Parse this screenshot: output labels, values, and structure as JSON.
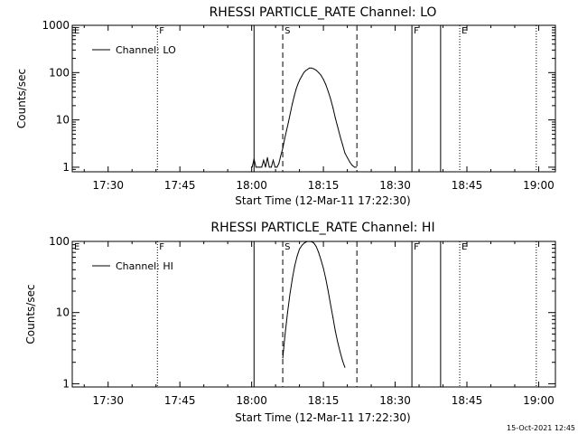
{
  "chart_data": [
    {
      "type": "line",
      "title": "RHESSI PARTICLE_RATE Channel: LO",
      "xlabel": "Start Time (12-Mar-11 17:22:30)",
      "ylabel": "Counts/sec",
      "legend": {
        "entries": [
          "Channel: LO"
        ],
        "placement": "top-left"
      },
      "x_unit": "minutes after 17:22:30",
      "xlim": [
        0,
        101
      ],
      "xticks": [
        {
          "value": 7.5,
          "label": "17:30"
        },
        {
          "value": 22.5,
          "label": "17:45"
        },
        {
          "value": 37.5,
          "label": "18:00"
        },
        {
          "value": 52.5,
          "label": "18:15"
        },
        {
          "value": 67.5,
          "label": "18:30"
        },
        {
          "value": 82.5,
          "label": "18:45"
        },
        {
          "value": 97.5,
          "label": "19:00"
        }
      ],
      "yscale": "log",
      "ylim": [
        0.8,
        1000
      ],
      "yticks": [
        {
          "value": 1,
          "label": "1"
        },
        {
          "value": 10,
          "label": "10"
        },
        {
          "value": 100,
          "label": "100"
        },
        {
          "value": 1000,
          "label": "1000"
        }
      ],
      "grid": false,
      "series": [
        {
          "name": "Channel: LO",
          "color": "#000000",
          "x": [
            37.6,
            38.0,
            38.4,
            38.8,
            39.2,
            39.6,
            40.0,
            40.4,
            40.8,
            41.2,
            41.6,
            42.0,
            42.4,
            42.8,
            43.2,
            43.6,
            44.0,
            44.4,
            44.8,
            45.2,
            45.6,
            46.0,
            46.4,
            46.8,
            47.2,
            47.6,
            48.0,
            48.4,
            48.8,
            49.2,
            49.6,
            50.0,
            50.5,
            51.0,
            51.5,
            52.0,
            52.5,
            53.0,
            53.5,
            54.0,
            54.5,
            55.0,
            55.5,
            56.0,
            56.5,
            57.0,
            57.5,
            58.0,
            58.5,
            59.0,
            59.4
          ],
          "y": [
            1,
            1.5,
            1,
            1,
            1,
            1,
            1.4,
            1,
            1.6,
            1,
            1,
            1.4,
            1,
            1,
            1.2,
            1.8,
            2.5,
            4,
            6,
            9,
            14,
            22,
            32,
            45,
            58,
            72,
            85,
            100,
            110,
            118,
            125,
            125,
            120,
            112,
            100,
            88,
            72,
            56,
            40,
            28,
            18,
            11,
            7,
            4.5,
            3,
            2,
            1.6,
            1.3,
            1.1,
            1,
            1
          ]
        }
      ],
      "vertical_lines": [
        {
          "x": 17.8,
          "style": "dotted",
          "flag": "F"
        },
        {
          "x": 38.0,
          "style": "solid",
          "flag": ""
        },
        {
          "x": 44.0,
          "style": "dashed",
          "flag": "S"
        },
        {
          "x": 59.5,
          "style": "dashed",
          "flag": ""
        },
        {
          "x": 71.0,
          "style": "solid",
          "flag": "F"
        },
        {
          "x": 77.0,
          "style": "solid",
          "flag": ""
        },
        {
          "x": 81.0,
          "style": "dotted",
          "flag": "E"
        },
        {
          "x": 97.0,
          "style": "dotted",
          "flag": ""
        }
      ],
      "flag_left": "E"
    },
    {
      "type": "line",
      "title": "RHESSI PARTICLE_RATE Channel: HI",
      "xlabel": "Start Time (12-Mar-11 17:22:30)",
      "ylabel": "Counts/sec",
      "legend": {
        "entries": [
          "Channel: HI"
        ],
        "placement": "top-left"
      },
      "x_unit": "minutes after 17:22:30",
      "xlim": [
        0,
        101
      ],
      "xticks": [
        {
          "value": 7.5,
          "label": "17:30"
        },
        {
          "value": 22.5,
          "label": "17:45"
        },
        {
          "value": 37.5,
          "label": "18:00"
        },
        {
          "value": 52.5,
          "label": "18:15"
        },
        {
          "value": 67.5,
          "label": "18:30"
        },
        {
          "value": 82.5,
          "label": "18:45"
        },
        {
          "value": 97.5,
          "label": "19:00"
        }
      ],
      "yscale": "log",
      "ylim": [
        0.9,
        100
      ],
      "yticks": [
        {
          "value": 1,
          "label": "1"
        },
        {
          "value": 10,
          "label": "10"
        },
        {
          "value": 100,
          "label": "100"
        }
      ],
      "grid": false,
      "series": [
        {
          "name": "Channel: HI",
          "color": "#000000",
          "x": [
            44.0,
            44.5,
            45.0,
            45.5,
            46.0,
            46.5,
            47.0,
            47.5,
            48.0,
            48.5,
            49.0,
            49.5,
            50.0,
            50.5,
            51.0,
            51.5,
            52.0,
            52.5,
            53.0,
            53.5,
            54.0,
            54.5,
            55.0,
            55.5,
            56.0,
            56.5,
            57.0
          ],
          "y": [
            2.3,
            5,
            10,
            18,
            30,
            45,
            62,
            78,
            88,
            95,
            99,
            100,
            99,
            95,
            85,
            70,
            55,
            42,
            30,
            20,
            13,
            8.5,
            5.5,
            3.8,
            2.8,
            2.1,
            1.7
          ]
        }
      ],
      "vertical_lines": [
        {
          "x": 17.8,
          "style": "dotted",
          "flag": "F"
        },
        {
          "x": 38.0,
          "style": "solid",
          "flag": ""
        },
        {
          "x": 44.0,
          "style": "dashed",
          "flag": "S"
        },
        {
          "x": 59.5,
          "style": "dashed",
          "flag": ""
        },
        {
          "x": 71.0,
          "style": "solid",
          "flag": "F"
        },
        {
          "x": 77.0,
          "style": "solid",
          "flag": ""
        },
        {
          "x": 81.0,
          "style": "dotted",
          "flag": "E"
        },
        {
          "x": 97.0,
          "style": "dotted",
          "flag": ""
        }
      ],
      "flag_left": "E"
    }
  ],
  "footer": {
    "timestamp": "15-Oct-2021 12:45"
  }
}
